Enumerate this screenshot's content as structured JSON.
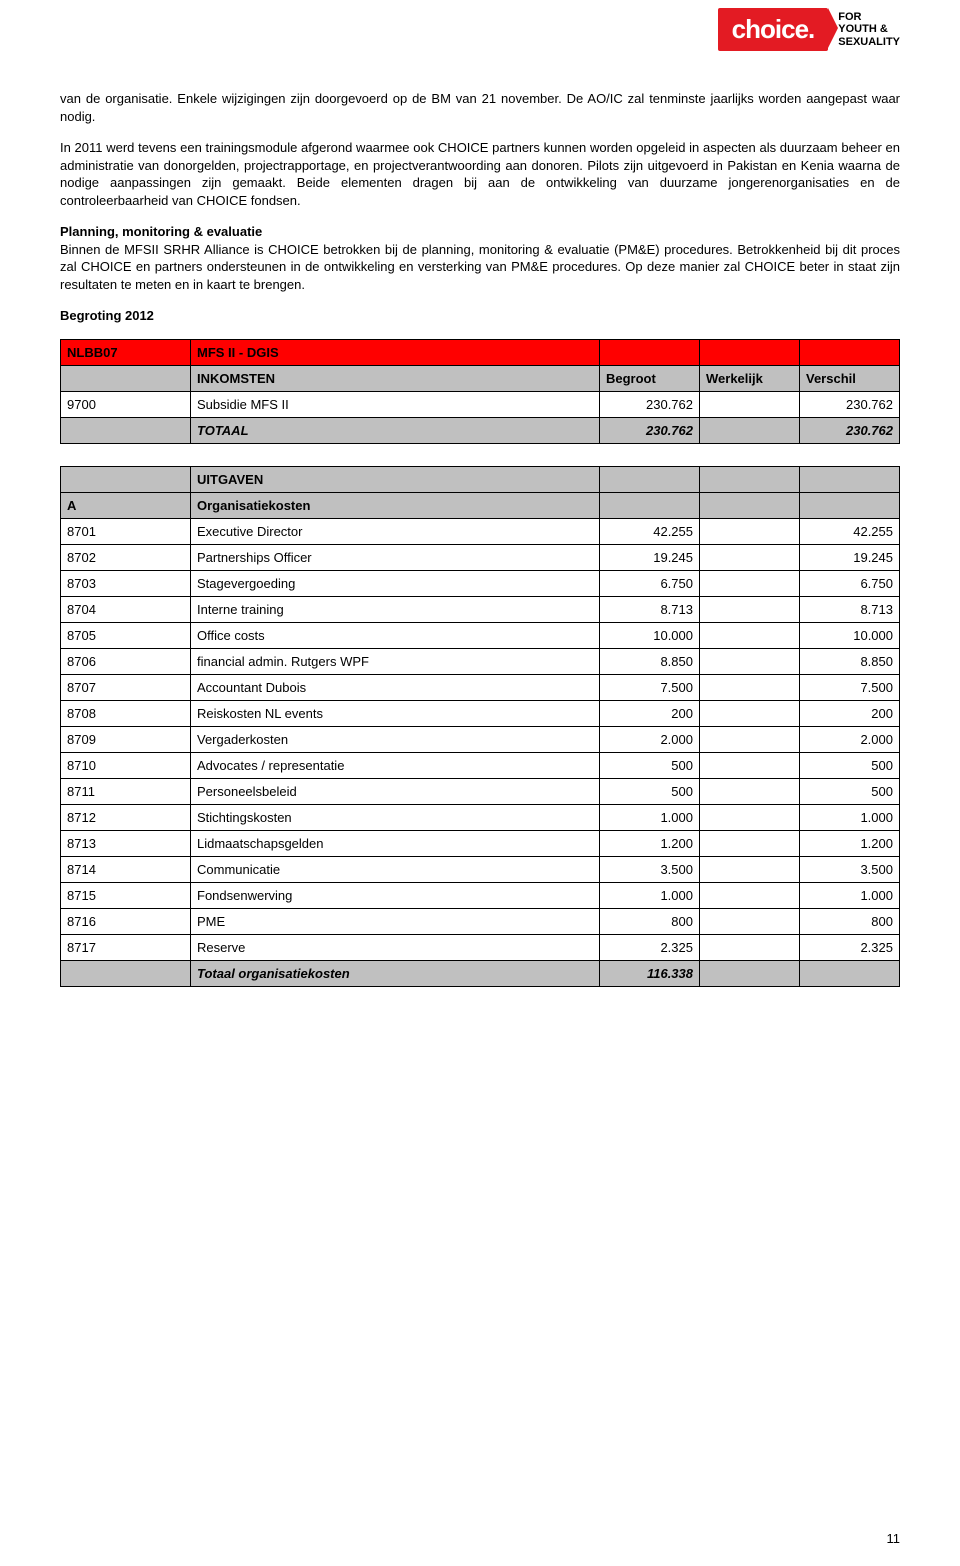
{
  "logo": {
    "brand": "choice.",
    "tagline_l1": "FOR",
    "tagline_l2": "YOUTH &",
    "tagline_l3": "SEXUALITY"
  },
  "paragraphs": {
    "p1": "van de organisatie. Enkele wijzigingen zijn doorgevoerd op de BM van 21 november. De AO/IC zal tenminste jaarlijks worden aangepast waar nodig.",
    "p2": "In 2011 werd tevens een trainingsmodule afgerond waarmee ook CHOICE partners kunnen worden opgeleid in aspecten als duurzaam beheer en administratie van donorgelden, projectrapportage, en projectverantwoording aan donoren. Pilots zijn uitgevoerd in Pakistan en Kenia waarna de nodige aanpassingen zijn gemaakt. Beide elementen dragen bij aan de ontwikkeling van duurzame jongerenorganisaties en de controleerbaarheid van CHOICE fondsen.",
    "pme_title": "Planning, monitoring & evaluatie",
    "p3": "Binnen de MFSII SRHR Alliance is CHOICE betrokken bij de planning, monitoring & evaluatie (PM&E) procedures. Betrokkenheid bij dit proces zal CHOICE en partners ondersteunen in de ontwikkeling en versterking van PM&E procedures. Op deze manier zal CHOICE beter in staat zijn resultaten te meten en in kaart te brengen.",
    "begroting": "Begroting 2012"
  },
  "table1": {
    "header": {
      "code": "NLBB07",
      "title": "MFS II - DGIS"
    },
    "cols": {
      "c1": "INKOMSTEN",
      "c2": "Begroot",
      "c3": "Werkelijk",
      "c4": "Verschil"
    },
    "rows": [
      {
        "code": "9700",
        "desc": "Subsidie MFS II",
        "begroot": "230.762",
        "werkelijk": "",
        "verschil": "230.762"
      }
    ],
    "total": {
      "label": "TOTAAL",
      "begroot": "230.762",
      "werkelijk": "",
      "verschil": "230.762"
    }
  },
  "table2": {
    "header": {
      "c1": "UITGAVEN"
    },
    "subheader": {
      "code": "A",
      "desc": "Organisatiekosten"
    },
    "rows": [
      {
        "code": "8701",
        "desc": "Executive Director",
        "begroot": "42.255",
        "werkelijk": "",
        "verschil": "42.255"
      },
      {
        "code": "8702",
        "desc": "Partnerships Officer",
        "begroot": "19.245",
        "werkelijk": "",
        "verschil": "19.245"
      },
      {
        "code": "8703",
        "desc": "Stagevergoeding",
        "begroot": "6.750",
        "werkelijk": "",
        "verschil": "6.750"
      },
      {
        "code": "8704",
        "desc": "Interne training",
        "begroot": "8.713",
        "werkelijk": "",
        "verschil": "8.713"
      },
      {
        "code": "8705",
        "desc": "Office costs",
        "begroot": "10.000",
        "werkelijk": "",
        "verschil": "10.000"
      },
      {
        "code": "8706",
        "desc": "financial admin. Rutgers WPF",
        "begroot": "8.850",
        "werkelijk": "",
        "verschil": "8.850"
      },
      {
        "code": "8707",
        "desc": "Accountant Dubois",
        "begroot": "7.500",
        "werkelijk": "",
        "verschil": "7.500"
      },
      {
        "code": "8708",
        "desc": "Reiskosten NL events",
        "begroot": "200",
        "werkelijk": "",
        "verschil": "200"
      },
      {
        "code": "8709",
        "desc": "Vergaderkosten",
        "begroot": "2.000",
        "werkelijk": "",
        "verschil": "2.000"
      },
      {
        "code": "8710",
        "desc": "Advocates / representatie",
        "begroot": "500",
        "werkelijk": "",
        "verschil": "500"
      },
      {
        "code": "8711",
        "desc": "Personeelsbeleid",
        "begroot": "500",
        "werkelijk": "",
        "verschil": "500"
      },
      {
        "code": "8712",
        "desc": "Stichtingskosten",
        "begroot": "1.000",
        "werkelijk": "",
        "verschil": "1.000"
      },
      {
        "code": "8713",
        "desc": "Lidmaatschapsgelden",
        "begroot": "1.200",
        "werkelijk": "",
        "verschil": "1.200"
      },
      {
        "code": "8714",
        "desc": "Communicatie",
        "begroot": "3.500",
        "werkelijk": "",
        "verschil": "3.500"
      },
      {
        "code": "8715",
        "desc": "Fondsenwerving",
        "begroot": "1.000",
        "werkelijk": "",
        "verschil": "1.000"
      },
      {
        "code": "8716",
        "desc": "PME",
        "begroot": "800",
        "werkelijk": "",
        "verschil": "800"
      },
      {
        "code": "8717",
        "desc": "Reserve",
        "begroot": "2.325",
        "werkelijk": "",
        "verschil": "2.325"
      }
    ],
    "total": {
      "label": "Totaal organisatiekosten",
      "begroot": "116.338",
      "werkelijk": "",
      "verschil": ""
    }
  },
  "page_number": "11",
  "colors": {
    "red": "#ff0000",
    "grey": "#c0c0c0",
    "logo_red": "#e31b23"
  }
}
